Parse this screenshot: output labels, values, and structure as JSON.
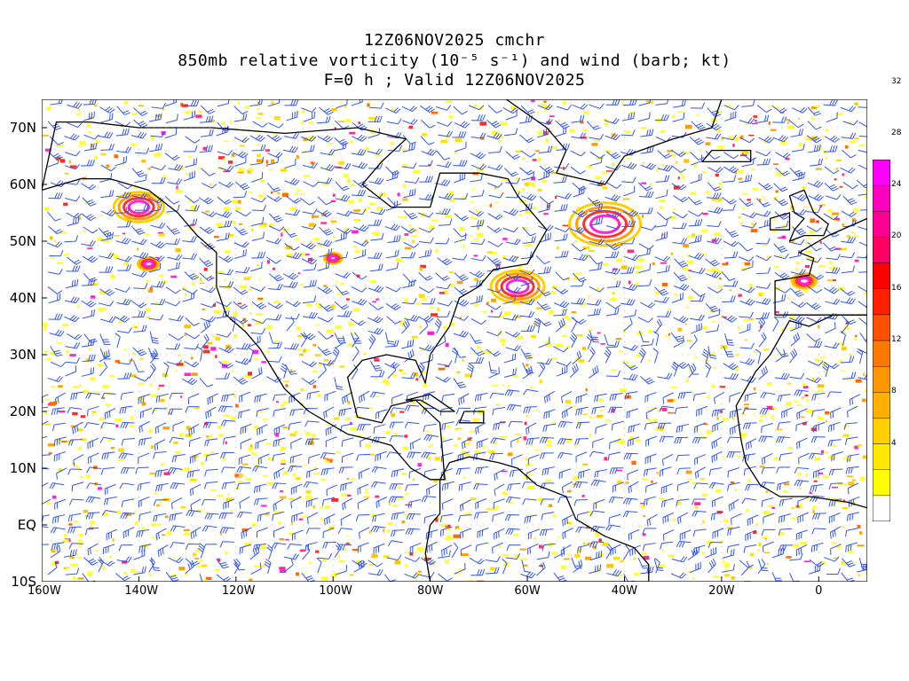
{
  "header": {
    "line1": "12Z06NOV2025 cmchr",
    "line2": "850mb relative vorticity (10⁻⁵ s⁻¹) and wind (barb; kt)",
    "line3": "F=0 h ; Valid 12Z06NOV2025"
  },
  "map": {
    "lat_labels": [
      "70N",
      "60N",
      "50N",
      "40N",
      "30N",
      "20N",
      "10N",
      "EQ",
      "10S"
    ],
    "lon_labels": [
      "160W",
      "140W",
      "120W",
      "100W",
      "80W",
      "60W",
      "40W",
      "20W",
      "0"
    ],
    "lat_values": [
      70,
      60,
      50,
      40,
      30,
      20,
      10,
      0,
      -10
    ],
    "lon_values": [
      -160,
      -140,
      -120,
      -100,
      -80,
      -60,
      -40,
      -20,
      0
    ],
    "extent": {
      "lon_min": -160,
      "lon_max": 10,
      "lat_min": -10,
      "lat_max": 75
    },
    "barb_color": "#3355ee",
    "coast_color": "#000000"
  },
  "colorbar": {
    "labels": [
      "4",
      "8",
      "12",
      "16",
      "20",
      "24",
      "28",
      "32"
    ],
    "label_values": [
      4,
      8,
      12,
      16,
      20,
      24,
      28,
      32
    ],
    "colors": [
      "#ffffff",
      "#ffff00",
      "#ffe800",
      "#ffd000",
      "#ffb000",
      "#ff9800",
      "#ff7800",
      "#ff5000",
      "#ff2000",
      "#ff0000",
      "#ff0060",
      "#ff0090",
      "#ff00c0",
      "#ff00ff"
    ]
  }
}
